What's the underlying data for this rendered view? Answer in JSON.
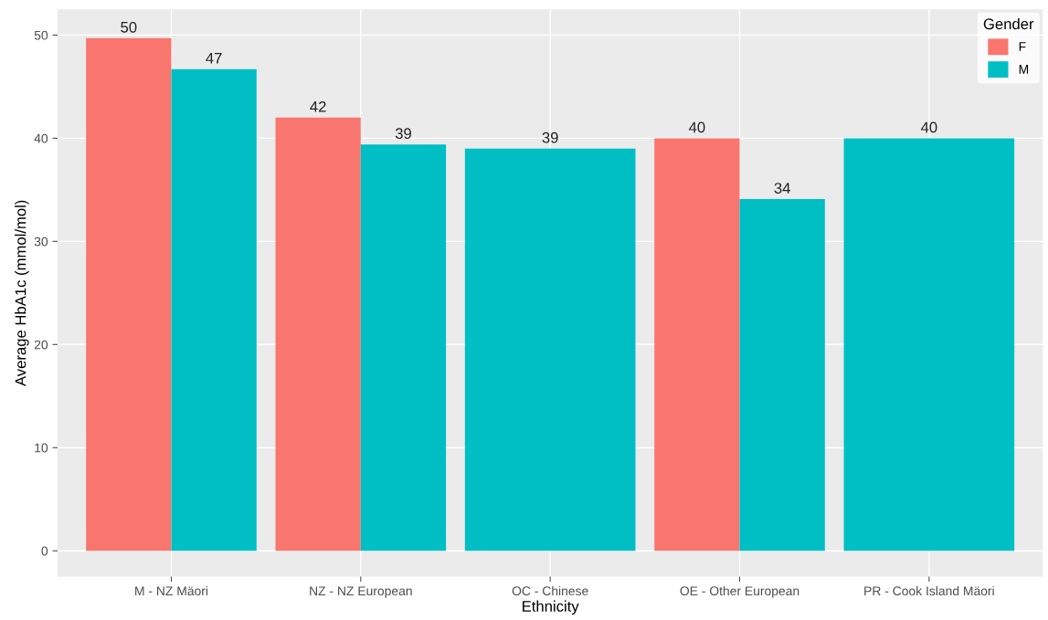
{
  "chart_data": {
    "type": "bar",
    "xlabel": "Ethnicity",
    "ylabel": "Average HbA1c (mmol/mol)",
    "legend_title": "Gender",
    "categories": [
      "M - NZ Mäori",
      "NZ - NZ European",
      "OC - Chinese",
      "OE - Other European",
      "PR - Cook Island Mäori"
    ],
    "series": [
      {
        "name": "F",
        "color": "#f8766d",
        "values": [
          49.7,
          42.0,
          null,
          40.0,
          null
        ],
        "value_labels": [
          "50",
          "42",
          null,
          "40",
          null
        ]
      },
      {
        "name": "M",
        "color": "#00bfc4",
        "values": [
          46.7,
          39.4,
          39.0,
          34.1,
          40.0
        ],
        "value_labels": [
          "47",
          "39",
          "39",
          "34",
          "40"
        ]
      }
    ],
    "ylim": [
      -2.5,
      52.5
    ],
    "yticks": [
      0,
      10,
      20,
      30,
      40,
      50
    ],
    "grid": true,
    "legend": "top right"
  }
}
